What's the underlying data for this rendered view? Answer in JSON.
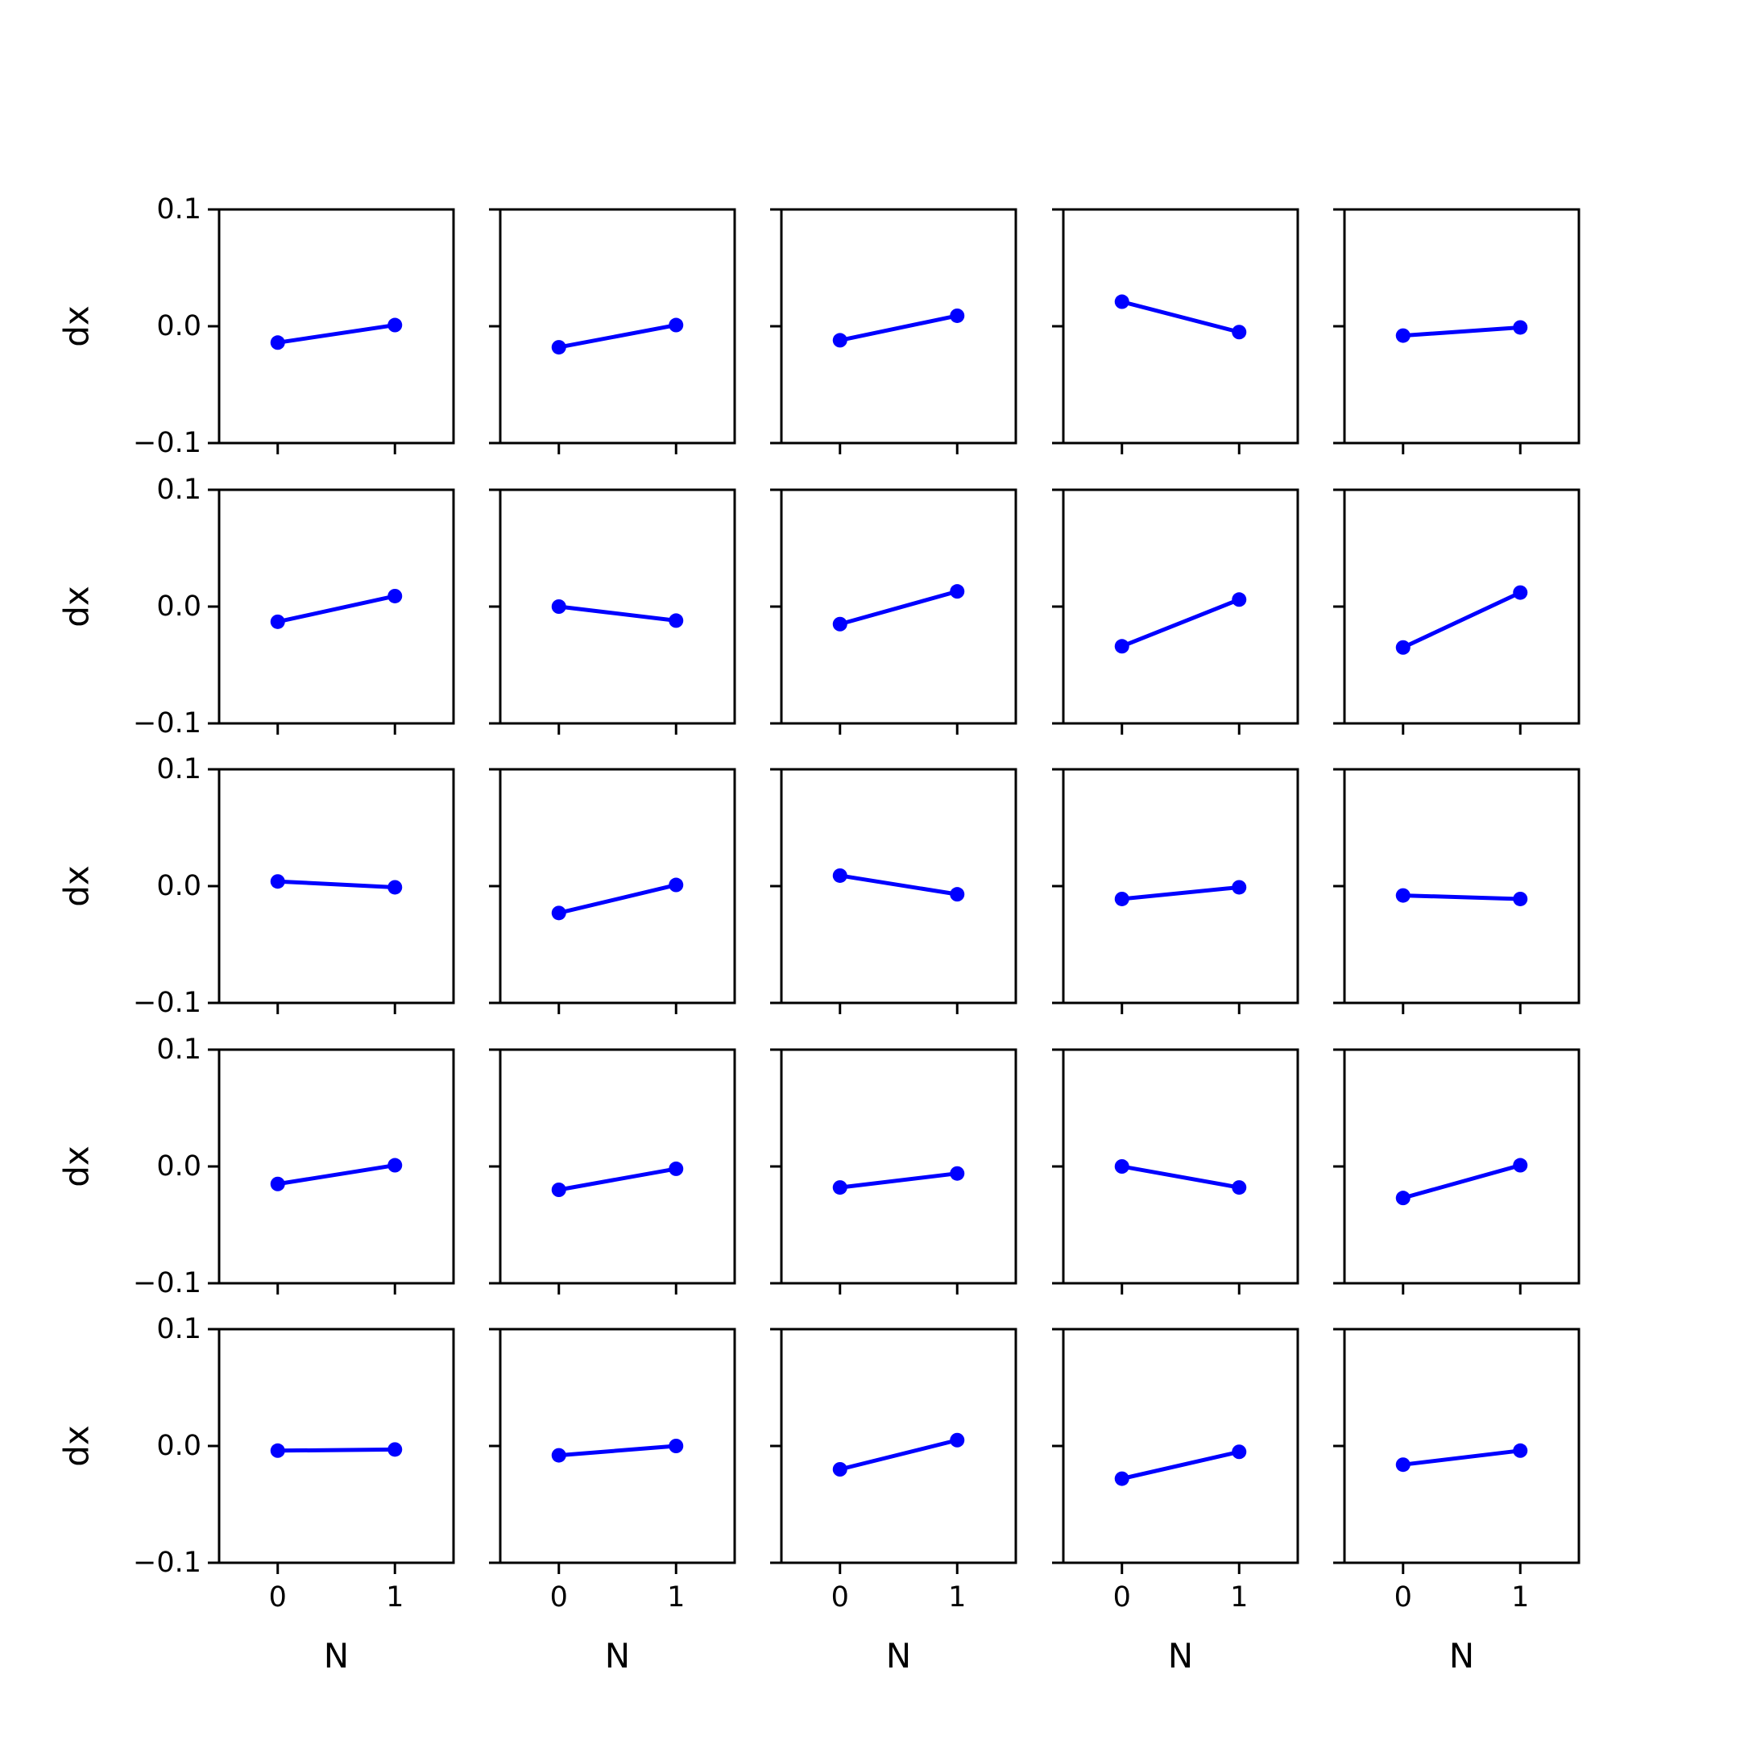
{
  "chart_data": {
    "type": "line",
    "layout": "small-multiples grid 5x5, shared axes",
    "rows": 5,
    "cols": 5,
    "xlabel": "N",
    "ylabel": "dx",
    "x": [
      0,
      1
    ],
    "xticks": [
      0,
      1
    ],
    "xlim": [
      -0.5,
      1.5
    ],
    "yticks": [
      -0.1,
      0.0,
      0.1
    ],
    "ytick_labels": [
      "−0.1",
      "0.0",
      "0.1"
    ],
    "ylim": [
      -0.1,
      0.1
    ],
    "grid": false,
    "legend": "none",
    "line_color": "#0000ff",
    "marker": "circle",
    "panels": [
      {
        "row": 0,
        "col": 0,
        "values": [
          -0.014,
          0.001
        ]
      },
      {
        "row": 0,
        "col": 1,
        "values": [
          -0.018,
          0.001
        ]
      },
      {
        "row": 0,
        "col": 2,
        "values": [
          -0.012,
          0.009
        ]
      },
      {
        "row": 0,
        "col": 3,
        "values": [
          0.021,
          -0.005
        ]
      },
      {
        "row": 0,
        "col": 4,
        "values": [
          -0.008,
          -0.001
        ]
      },
      {
        "row": 1,
        "col": 0,
        "values": [
          -0.013,
          0.009
        ]
      },
      {
        "row": 1,
        "col": 1,
        "values": [
          0.0,
          -0.012
        ]
      },
      {
        "row": 1,
        "col": 2,
        "values": [
          -0.015,
          0.013
        ]
      },
      {
        "row": 1,
        "col": 3,
        "values": [
          -0.034,
          0.006
        ]
      },
      {
        "row": 1,
        "col": 4,
        "values": [
          -0.035,
          0.012
        ]
      },
      {
        "row": 2,
        "col": 0,
        "values": [
          0.004,
          -0.001
        ]
      },
      {
        "row": 2,
        "col": 1,
        "values": [
          -0.023,
          0.001
        ]
      },
      {
        "row": 2,
        "col": 2,
        "values": [
          0.009,
          -0.007
        ]
      },
      {
        "row": 2,
        "col": 3,
        "values": [
          -0.011,
          -0.001
        ]
      },
      {
        "row": 2,
        "col": 4,
        "values": [
          -0.008,
          -0.011
        ]
      },
      {
        "row": 3,
        "col": 0,
        "values": [
          -0.015,
          0.001
        ]
      },
      {
        "row": 3,
        "col": 1,
        "values": [
          -0.02,
          -0.002
        ]
      },
      {
        "row": 3,
        "col": 2,
        "values": [
          -0.018,
          -0.006
        ]
      },
      {
        "row": 3,
        "col": 3,
        "values": [
          0.0,
          -0.018
        ]
      },
      {
        "row": 3,
        "col": 4,
        "values": [
          -0.027,
          0.001
        ]
      },
      {
        "row": 4,
        "col": 0,
        "values": [
          -0.004,
          -0.003
        ]
      },
      {
        "row": 4,
        "col": 1,
        "values": [
          -0.008,
          0.0
        ]
      },
      {
        "row": 4,
        "col": 2,
        "values": [
          -0.02,
          0.005
        ]
      },
      {
        "row": 4,
        "col": 3,
        "values": [
          -0.028,
          -0.005
        ]
      },
      {
        "row": 4,
        "col": 4,
        "values": [
          -0.016,
          -0.004
        ]
      }
    ]
  }
}
